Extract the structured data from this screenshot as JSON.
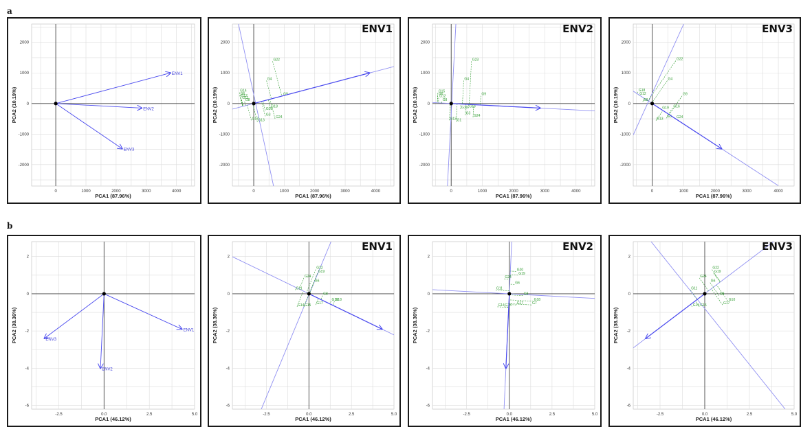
{
  "row_labels": [
    "a",
    "b"
  ],
  "colors": {
    "vector": "#4a4aee",
    "line": "#8f8ff2",
    "genotype": "#2e9b2e",
    "grid": "#dcdcdc",
    "axis": "#444444",
    "origin": "#000000"
  },
  "chart_data": [
    {
      "type": "scatter",
      "subplot": "a-1",
      "title": "",
      "xlabel": "PCA1 (87.96%)",
      "ylabel": "PCA2 (10.19%)",
      "xlim": [
        -800,
        4600
      ],
      "ylim": [
        -2700,
        2600
      ],
      "xticks": [
        0,
        1000,
        2000,
        3000,
        4000
      ],
      "yticks": [
        -2000,
        -1000,
        0,
        1000,
        2000
      ],
      "grid": true,
      "vectors": [
        {
          "name": "ENV1",
          "x": 3800,
          "y": 1000
        },
        {
          "name": "ENV2",
          "x": 2850,
          "y": -150
        },
        {
          "name": "ENV3",
          "x": 2200,
          "y": -1480
        }
      ],
      "genotypes": [],
      "lines": [],
      "arrow": null
    },
    {
      "type": "scatter",
      "subplot": "a-2",
      "title": "ENV1",
      "xlabel": "PCA1 (87.96%)",
      "ylabel": "PCA2 (10.19%)",
      "xlim": [
        -700,
        4600
      ],
      "ylim": [
        -2700,
        2600
      ],
      "xticks": [
        0,
        1000,
        2000,
        3000,
        4000
      ],
      "yticks": [
        -2000,
        -1000,
        0,
        1000,
        2000
      ],
      "grid": true,
      "vectors": [],
      "genotypes": [
        {
          "name": "G22",
          "x": 620,
          "y": 1380
        },
        {
          "name": "G4",
          "x": 420,
          "y": 750
        },
        {
          "name": "G9",
          "x": 950,
          "y": 250
        },
        {
          "name": "G18",
          "x": 550,
          "y": -150
        },
        {
          "name": "G16",
          "x": 380,
          "y": -230
        },
        {
          "name": "G3",
          "x": 380,
          "y": -420
        },
        {
          "name": "G24",
          "x": 700,
          "y": -500
        },
        {
          "name": "G17",
          "x": -80,
          "y": -550
        },
        {
          "name": "G13",
          "x": 120,
          "y": -600
        },
        {
          "name": "G14",
          "x": -470,
          "y": 360
        },
        {
          "name": "G6",
          "x": -460,
          "y": 270
        },
        {
          "name": "G12",
          "x": -440,
          "y": 200
        },
        {
          "name": "G11",
          "x": -400,
          "y": 130
        },
        {
          "name": "G8",
          "x": -300,
          "y": 60
        }
      ],
      "arrow": {
        "x": 3800,
        "y": 1000
      },
      "lines": [
        {
          "x1": -700,
          "y1": -184,
          "x2": 4600,
          "y2": 1210
        },
        {
          "x1": -500,
          "y1": 2600,
          "x2": 650,
          "y2": -2700
        }
      ]
    },
    {
      "type": "scatter",
      "subplot": "a-3",
      "title": "ENV2",
      "xlabel": "PCA1 (87.96%)",
      "ylabel": "PCA2 (10.19%)",
      "xlim": [
        -600,
        4600
      ],
      "ylim": [
        -2700,
        2600
      ],
      "xticks": [
        0,
        1000,
        2000,
        3000,
        4000
      ],
      "yticks": [
        -2000,
        -1000,
        0,
        1000,
        2000
      ],
      "grid": true,
      "vectors": [],
      "genotypes": [
        {
          "name": "G23",
          "x": 650,
          "y": 1380
        },
        {
          "name": "G4",
          "x": 400,
          "y": 750
        },
        {
          "name": "G9",
          "x": 950,
          "y": 250
        },
        {
          "name": "G18",
          "x": 550,
          "y": -150
        },
        {
          "name": "G19",
          "x": 300,
          "y": -180
        },
        {
          "name": "G3",
          "x": 450,
          "y": -380
        },
        {
          "name": "G24",
          "x": 700,
          "y": -450
        },
        {
          "name": "G13",
          "x": -60,
          "y": -550
        },
        {
          "name": "G1",
          "x": 160,
          "y": -600
        },
        {
          "name": "G15",
          "x": -430,
          "y": 340
        },
        {
          "name": "G6",
          "x": -430,
          "y": 260
        },
        {
          "name": "G12",
          "x": -400,
          "y": 190
        },
        {
          "name": "G8",
          "x": -300,
          "y": 60
        }
      ],
      "arrow": {
        "x": 2850,
        "y": -150
      },
      "lines": [
        {
          "x1": -600,
          "y1": 32,
          "x2": 4600,
          "y2": -242
        },
        {
          "x1": -120,
          "y1": -2700,
          "x2": 150,
          "y2": 2600
        }
      ]
    },
    {
      "type": "scatter",
      "subplot": "a-4",
      "title": "ENV3",
      "xlabel": "PCA1 (87.96%)",
      "ylabel": "PCA2 (10.19%)",
      "xlim": [
        -600,
        4500
      ],
      "ylim": [
        -2700,
        2600
      ],
      "xticks": [
        0,
        1000,
        2000,
        3000,
        4000
      ],
      "yticks": [
        -2000,
        -1000,
        0,
        1000,
        2000
      ],
      "grid": true,
      "vectors": [],
      "genotypes": [
        {
          "name": "G22",
          "x": 750,
          "y": 1400
        },
        {
          "name": "G4",
          "x": 480,
          "y": 750
        },
        {
          "name": "G9",
          "x": 950,
          "y": 250
        },
        {
          "name": "G16",
          "x": 650,
          "y": -150
        },
        {
          "name": "G19",
          "x": 300,
          "y": -200
        },
        {
          "name": "G3",
          "x": 450,
          "y": -480
        },
        {
          "name": "G13",
          "x": 120,
          "y": -560
        },
        {
          "name": "G24",
          "x": 750,
          "y": -500
        },
        {
          "name": "G18",
          "x": -450,
          "y": 380
        },
        {
          "name": "G12",
          "x": -420,
          "y": 260
        },
        {
          "name": "G8",
          "x": -300,
          "y": 60
        }
      ],
      "arrow": {
        "x": 2200,
        "y": -1480
      },
      "lines": [
        {
          "x1": -600,
          "y1": 404,
          "x2": 4000,
          "y2": -2690
        },
        {
          "x1": -600,
          "y1": -1030,
          "x2": 1000,
          "y2": 2600
        }
      ]
    },
    {
      "type": "scatter",
      "subplot": "b-1",
      "title": "",
      "xlabel": "PCA1 (46.12%)",
      "ylabel": "PCA2 (38.36%)",
      "xlim": [
        -4,
        5
      ],
      "ylim": [
        -6.2,
        2.8
      ],
      "xticks": [
        -2.5,
        0.0,
        2.5,
        5.0
      ],
      "yticks": [
        -6,
        -4,
        -2,
        0,
        2
      ],
      "grid": true,
      "vectors": [
        {
          "name": "ENV1",
          "x": 4.3,
          "y": -1.9
        },
        {
          "name": "ENV2",
          "x": -0.2,
          "y": -4.0
        },
        {
          "name": "ENV3",
          "x": -3.3,
          "y": -2.4
        }
      ],
      "genotypes": [],
      "lines": [],
      "arrow": null
    },
    {
      "type": "scatter",
      "subplot": "b-2",
      "title": "ENV1",
      "xlabel": "PCA1 (46.12%)",
      "ylabel": "PCA2 (38.36%)",
      "xlim": [
        -4.5,
        5
      ],
      "ylim": [
        -6.2,
        2.8
      ],
      "xticks": [
        -2.5,
        0.0,
        2.5,
        5.0
      ],
      "yticks": [
        -6,
        -4,
        -2,
        0,
        2
      ],
      "grid": true,
      "vectors": [],
      "genotypes": [
        {
          "name": "G22",
          "x": 0.4,
          "y": 1.3
        },
        {
          "name": "G19",
          "x": 0.5,
          "y": 1.1
        },
        {
          "name": "G24",
          "x": -0.3,
          "y": 0.85
        },
        {
          "name": "G6",
          "x": 0.3,
          "y": 0.6
        },
        {
          "name": "G11",
          "x": -0.8,
          "y": 0.2
        },
        {
          "name": "G8",
          "x": 0.8,
          "y": -0.1
        },
        {
          "name": "G10",
          "x": 1.3,
          "y": -0.4
        },
        {
          "name": "G18",
          "x": 1.5,
          "y": -0.4
        },
        {
          "name": "G17",
          "x": 0.4,
          "y": -0.6
        },
        {
          "name": "G15",
          "x": -0.3,
          "y": -0.7
        },
        {
          "name": "G14",
          "x": -0.7,
          "y": -0.7
        }
      ],
      "arrow": {
        "x": 4.3,
        "y": -1.9
      },
      "lines": [
        {
          "x1": -4.5,
          "y1": 1.99,
          "x2": 5,
          "y2": -2.21
        },
        {
          "x1": -2.8,
          "y1": -6.2,
          "x2": 1.3,
          "y2": 2.8
        }
      ]
    },
    {
      "type": "scatter",
      "subplot": "b-3",
      "title": "ENV2",
      "xlabel": "PCA1 (46.12%)",
      "ylabel": "PCA2 (38.36%)",
      "xlim": [
        -4.5,
        5
      ],
      "ylim": [
        -6.2,
        2.8
      ],
      "xticks": [
        -2.5,
        0.0,
        2.5,
        5.0
      ],
      "yticks": [
        -6,
        -4,
        -2,
        0,
        2
      ],
      "grid": true,
      "vectors": [],
      "genotypes": [
        {
          "name": "G20",
          "x": 0.4,
          "y": 1.2
        },
        {
          "name": "G19",
          "x": 0.5,
          "y": 1.0
        },
        {
          "name": "G24",
          "x": -0.3,
          "y": 0.8
        },
        {
          "name": "G6",
          "x": 0.3,
          "y": 0.5
        },
        {
          "name": "G11",
          "x": -0.8,
          "y": 0.2
        },
        {
          "name": "G8",
          "x": 0.8,
          "y": -0.1
        },
        {
          "name": "G18",
          "x": 1.4,
          "y": -0.4
        },
        {
          "name": "G7",
          "x": 1.3,
          "y": -0.6
        },
        {
          "name": "G17",
          "x": 0.4,
          "y": -0.6
        },
        {
          "name": "G15",
          "x": -0.3,
          "y": -0.7
        },
        {
          "name": "G14",
          "x": -0.7,
          "y": -0.7
        }
      ],
      "arrow": {
        "x": -0.2,
        "y": -4.0
      },
      "lines": [
        {
          "x1": -4.5,
          "y1": 0.22,
          "x2": 5,
          "y2": -0.25
        },
        {
          "x1": -0.31,
          "y1": -6.2,
          "x2": 0.14,
          "y2": 2.8
        }
      ]
    },
    {
      "type": "scatter",
      "subplot": "b-4",
      "title": "ENV3",
      "xlabel": "PCA1 (46.12%)",
      "ylabel": "PCA2 (38.36%)",
      "xlim": [
        -4,
        5
      ],
      "ylim": [
        -6.2,
        2.8
      ],
      "xticks": [
        -2.5,
        0.0,
        2.5,
        5.0
      ],
      "yticks": [
        -6,
        -4,
        -2,
        0,
        2
      ],
      "grid": true,
      "vectors": [],
      "genotypes": [
        {
          "name": "G22",
          "x": 0.4,
          "y": 1.3
        },
        {
          "name": "G19",
          "x": 0.5,
          "y": 1.1
        },
        {
          "name": "G24",
          "x": -0.3,
          "y": 0.85
        },
        {
          "name": "G6",
          "x": 0.3,
          "y": 0.6
        },
        {
          "name": "G11",
          "x": -0.8,
          "y": 0.2
        },
        {
          "name": "G8",
          "x": 0.8,
          "y": -0.1
        },
        {
          "name": "G10",
          "x": 1.3,
          "y": -0.4
        },
        {
          "name": "G17",
          "x": 1.0,
          "y": -0.6
        },
        {
          "name": "G15",
          "x": -0.3,
          "y": -0.7
        },
        {
          "name": "G14",
          "x": -0.7,
          "y": -0.7
        }
      ],
      "arrow": {
        "x": -3.3,
        "y": -2.4
      },
      "lines": [
        {
          "x1": -4,
          "y1": -2.91,
          "x2": 5,
          "y2": 3.64
        },
        {
          "x1": -3.0,
          "y1": 2.8,
          "x2": 4.5,
          "y2": -6.2
        }
      ]
    }
  ]
}
